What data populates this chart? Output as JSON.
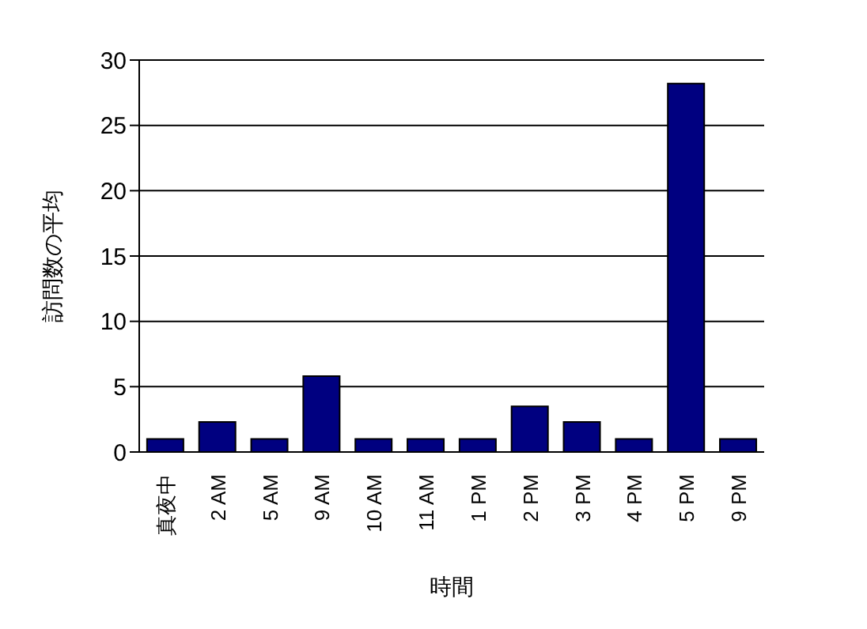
{
  "chart_data": {
    "type": "bar",
    "xlabel": "時間",
    "ylabel": "訪問数の平均",
    "categories": [
      "真夜中",
      "2 AM",
      "5 AM",
      "9 AM",
      "10 AM",
      "11 AM",
      "1 PM",
      "2 PM",
      "3 PM",
      "4 PM",
      "5 PM",
      "9 PM"
    ],
    "values": [
      1,
      2.3,
      1,
      5.8,
      1,
      1,
      1,
      3.5,
      2.3,
      1,
      28.2,
      1
    ],
    "color": "#000080",
    "ylim": [
      0,
      30
    ],
    "yticks": [
      0,
      5,
      10,
      15,
      20,
      25,
      30
    ],
    "grid": "y"
  }
}
